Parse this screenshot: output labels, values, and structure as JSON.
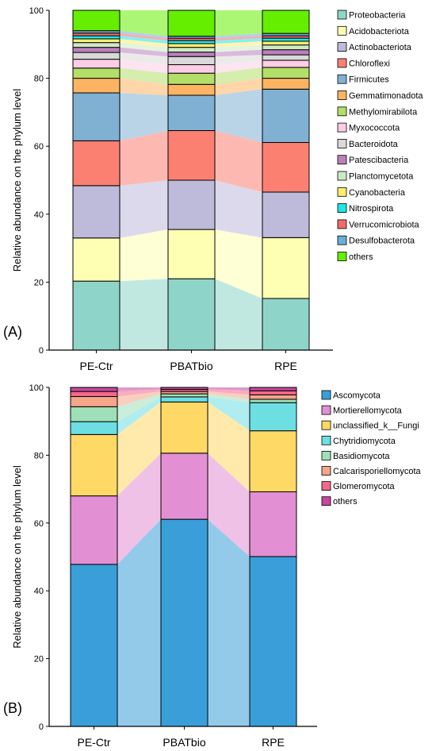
{
  "panels": [
    {
      "panel_label": "(A)",
      "chart_data": {
        "type": "stacked-bar",
        "ylabel": "Relative abundance on the phylum level",
        "ylim": [
          0,
          100
        ],
        "yticks": [
          0,
          20,
          40,
          60,
          80,
          100
        ],
        "categories": [
          "PE-Ctr",
          "PBATbio",
          "RPE"
        ],
        "series": [
          {
            "name": "Proteobacteria",
            "color": "#8fd4c8",
            "values": [
              20.3,
              21.0,
              15.2
            ]
          },
          {
            "name": "Acidobacteriota",
            "color": "#ffffb3",
            "values": [
              12.7,
              14.5,
              17.9
            ]
          },
          {
            "name": "Actinobacteriota",
            "color": "#bebada",
            "values": [
              15.4,
              14.5,
              13.4
            ]
          },
          {
            "name": "Chloroflexi",
            "color": "#fb8072",
            "values": [
              13.2,
              14.6,
              14.6
            ]
          },
          {
            "name": "Firmicutes",
            "color": "#80b1d3",
            "values": [
              14.1,
              10.4,
              15.7
            ]
          },
          {
            "name": "Gemmatimonadota",
            "color": "#fdb462",
            "values": [
              4.3,
              3.2,
              3.2
            ]
          },
          {
            "name": "Methylomirabilota",
            "color": "#b3de69",
            "values": [
              3.0,
              3.3,
              3.2
            ]
          },
          {
            "name": "Myxococcota",
            "color": "#fccde5",
            "values": [
              2.6,
              2.5,
              2.1
            ]
          },
          {
            "name": "Bacteroidota",
            "color": "#d9d9d9",
            "values": [
              2.0,
              2.4,
              1.6
            ]
          },
          {
            "name": "Patescibacteria",
            "color": "#bc80bd",
            "values": [
              1.5,
              1.3,
              1.5
            ]
          },
          {
            "name": "Planctomycetota",
            "color": "#ccebc5",
            "values": [
              1.4,
              1.4,
              1.4
            ]
          },
          {
            "name": "Cyanobacteria",
            "color": "#ffed6f",
            "values": [
              1.1,
              1.1,
              1.1
            ]
          },
          {
            "name": "Nitrospirota",
            "color": "#1fe5e5",
            "values": [
              0.9,
              0.9,
              0.9
            ]
          },
          {
            "name": "Verrucomicrobiota",
            "color": "#f26b6b",
            "values": [
              0.8,
              0.7,
              0.7
            ]
          },
          {
            "name": "Desulfobacterota",
            "color": "#6baed6",
            "values": [
              0.7,
              0.6,
              0.7
            ]
          },
          {
            "name": "others",
            "color": "#66ee00",
            "values": [
              6.0,
              7.6,
              6.8
            ]
          }
        ]
      }
    },
    {
      "panel_label": "(B)",
      "chart_data": {
        "type": "stacked-bar",
        "ylabel": "Relative abundance on the phylum level",
        "ylim": [
          0,
          100
        ],
        "yticks": [
          0,
          20,
          40,
          60,
          80,
          100
        ],
        "categories": [
          "PE-Ctr",
          "PBATbio",
          "RPE"
        ],
        "series": [
          {
            "name": "Ascomycota",
            "color": "#3a9fd9",
            "values": [
              47.8,
              61.1,
              50.1
            ]
          },
          {
            "name": "Mortierellomycota",
            "color": "#e38fd3",
            "values": [
              20.2,
              19.5,
              19.1
            ]
          },
          {
            "name": "unclassified_k__Fungi",
            "color": "#ffd966",
            "values": [
              18.1,
              15.1,
              18.0
            ]
          },
          {
            "name": "Chytridiomycota",
            "color": "#6ddfe3",
            "values": [
              3.8,
              1.5,
              8.3
            ]
          },
          {
            "name": "Basidiomycota",
            "color": "#9fe0b8",
            "values": [
              4.4,
              0.9,
              1.0
            ]
          },
          {
            "name": "Calcarisporiellomycota",
            "color": "#f4a58a",
            "values": [
              3.0,
              0.7,
              1.3
            ]
          },
          {
            "name": "Glomeromycota",
            "color": "#f2698b",
            "values": [
              1.5,
              0.6,
              1.2
            ]
          },
          {
            "name": "others",
            "color": "#c6479c",
            "values": [
              1.2,
              0.6,
              1.0
            ]
          }
        ]
      }
    }
  ]
}
